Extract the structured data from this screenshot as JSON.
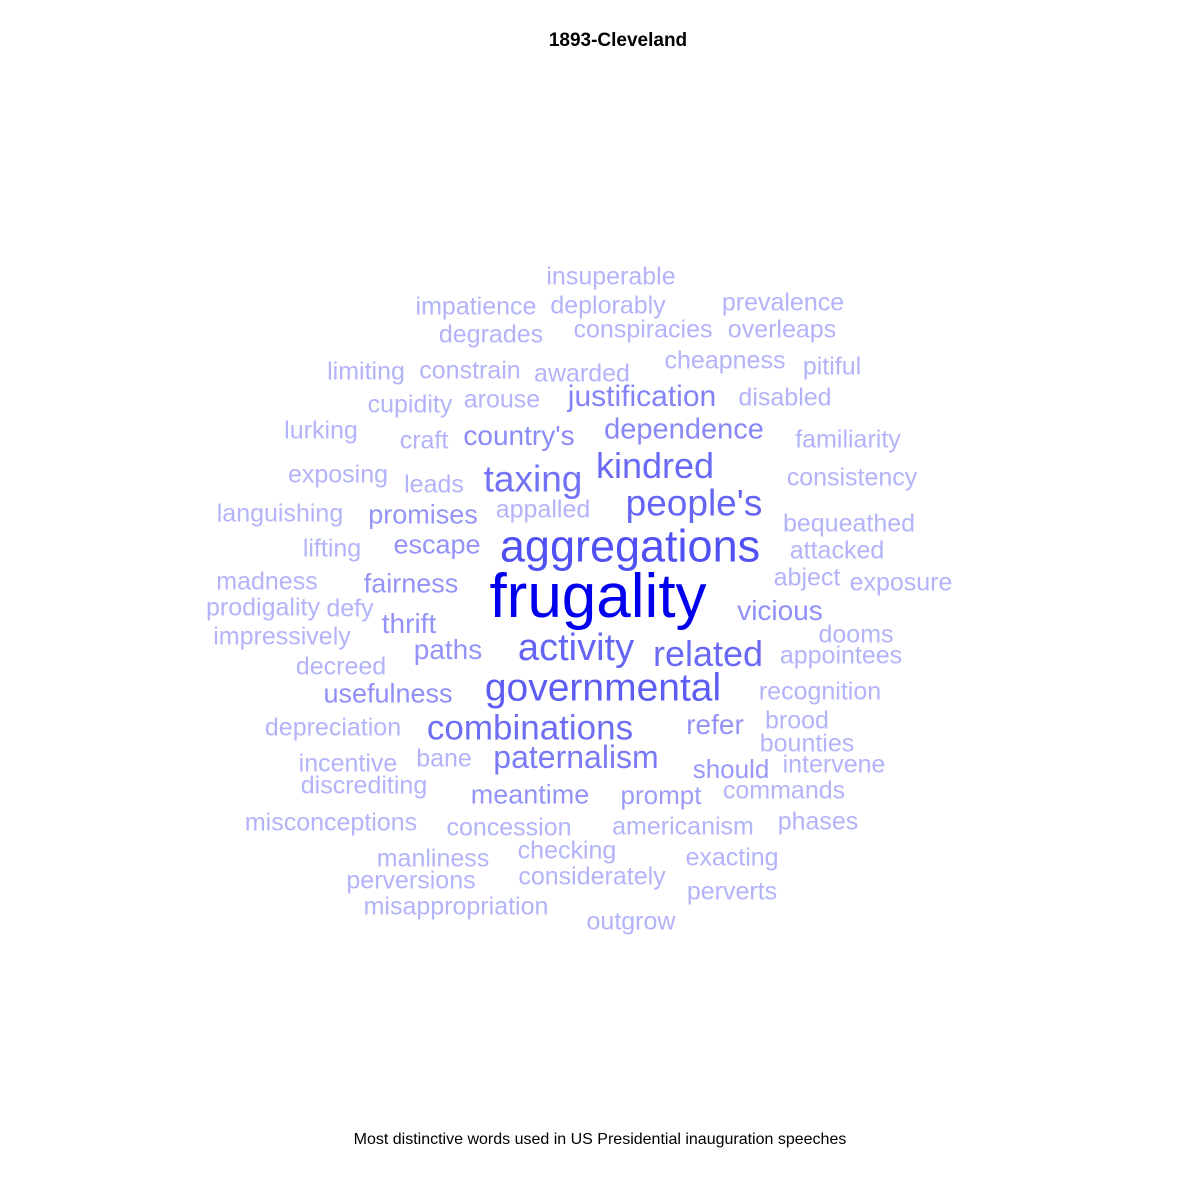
{
  "chart_data": {
    "type": "wordcloud",
    "title": "1893-Cleveland",
    "caption": "Most distinctive words used in US Presidential inauguration speeches",
    "color_scale": {
      "low": "#b3b3fa",
      "high": "#0000ee"
    },
    "words": [
      {
        "text": "frugality",
        "weight": 1.0
      },
      {
        "text": "aggregations",
        "weight": 0.62
      },
      {
        "text": "governmental",
        "weight": 0.56
      },
      {
        "text": "people's",
        "weight": 0.52
      },
      {
        "text": "activity",
        "weight": 0.52
      },
      {
        "text": "related",
        "weight": 0.5
      },
      {
        "text": "kindred",
        "weight": 0.5
      },
      {
        "text": "combinations",
        "weight": 0.48
      },
      {
        "text": "taxing",
        "weight": 0.46
      },
      {
        "text": "paternalism",
        "weight": 0.42
      },
      {
        "text": "justification",
        "weight": 0.38
      },
      {
        "text": "dependence",
        "weight": 0.36
      },
      {
        "text": "country's",
        "weight": 0.34
      },
      {
        "text": "vicious",
        "weight": 0.32
      },
      {
        "text": "usefulness",
        "weight": 0.32
      },
      {
        "text": "meantime",
        "weight": 0.3
      },
      {
        "text": "promises",
        "weight": 0.3
      },
      {
        "text": "escape",
        "weight": 0.3
      },
      {
        "text": "fairness",
        "weight": 0.3
      },
      {
        "text": "thrift",
        "weight": 0.3
      },
      {
        "text": "paths",
        "weight": 0.3
      },
      {
        "text": "refer",
        "weight": 0.3
      },
      {
        "text": "should",
        "weight": 0.28
      },
      {
        "text": "prompt",
        "weight": 0.26
      },
      {
        "text": "insuperable",
        "weight": 0.15
      },
      {
        "text": "impatience",
        "weight": 0.15
      },
      {
        "text": "deplorably",
        "weight": 0.15
      },
      {
        "text": "prevalence",
        "weight": 0.15
      },
      {
        "text": "degrades",
        "weight": 0.15
      },
      {
        "text": "conspiracies",
        "weight": 0.15
      },
      {
        "text": "overleaps",
        "weight": 0.15
      },
      {
        "text": "cheapness",
        "weight": 0.15
      },
      {
        "text": "limiting",
        "weight": 0.15
      },
      {
        "text": "constrain",
        "weight": 0.15
      },
      {
        "text": "awarded",
        "weight": 0.15
      },
      {
        "text": "pitiful",
        "weight": 0.15
      },
      {
        "text": "disabled",
        "weight": 0.15
      },
      {
        "text": "cupidity",
        "weight": 0.15
      },
      {
        "text": "arouse",
        "weight": 0.15
      },
      {
        "text": "lurking",
        "weight": 0.15
      },
      {
        "text": "craft",
        "weight": 0.15
      },
      {
        "text": "familiarity",
        "weight": 0.15
      },
      {
        "text": "exposing",
        "weight": 0.15
      },
      {
        "text": "leads",
        "weight": 0.15
      },
      {
        "text": "consistency",
        "weight": 0.15
      },
      {
        "text": "languishing",
        "weight": 0.15
      },
      {
        "text": "appalled",
        "weight": 0.15
      },
      {
        "text": "bequeathed",
        "weight": 0.15
      },
      {
        "text": "lifting",
        "weight": 0.15
      },
      {
        "text": "attacked",
        "weight": 0.15
      },
      {
        "text": "madness",
        "weight": 0.15
      },
      {
        "text": "abject",
        "weight": 0.15
      },
      {
        "text": "exposure",
        "weight": 0.15
      },
      {
        "text": "prodigality",
        "weight": 0.15
      },
      {
        "text": "defy",
        "weight": 0.15
      },
      {
        "text": "impressively",
        "weight": 0.15
      },
      {
        "text": "dooms",
        "weight": 0.15
      },
      {
        "text": "decreed",
        "weight": 0.15
      },
      {
        "text": "appointees",
        "weight": 0.15
      },
      {
        "text": "recognition",
        "weight": 0.15
      },
      {
        "text": "depreciation",
        "weight": 0.15
      },
      {
        "text": "brood",
        "weight": 0.15
      },
      {
        "text": "bounties",
        "weight": 0.15
      },
      {
        "text": "incentive",
        "weight": 0.15
      },
      {
        "text": "bane",
        "weight": 0.15
      },
      {
        "text": "intervene",
        "weight": 0.15
      },
      {
        "text": "discrediting",
        "weight": 0.15
      },
      {
        "text": "commands",
        "weight": 0.15
      },
      {
        "text": "misconceptions",
        "weight": 0.15
      },
      {
        "text": "concession",
        "weight": 0.15
      },
      {
        "text": "americanism",
        "weight": 0.15
      },
      {
        "text": "phases",
        "weight": 0.15
      },
      {
        "text": "manliness",
        "weight": 0.15
      },
      {
        "text": "checking",
        "weight": 0.15
      },
      {
        "text": "exacting",
        "weight": 0.15
      },
      {
        "text": "perversions",
        "weight": 0.15
      },
      {
        "text": "considerately",
        "weight": 0.15
      },
      {
        "text": "perverts",
        "weight": 0.15
      },
      {
        "text": "misappropriation",
        "weight": 0.15
      },
      {
        "text": "outgrow",
        "weight": 0.15
      }
    ]
  }
}
